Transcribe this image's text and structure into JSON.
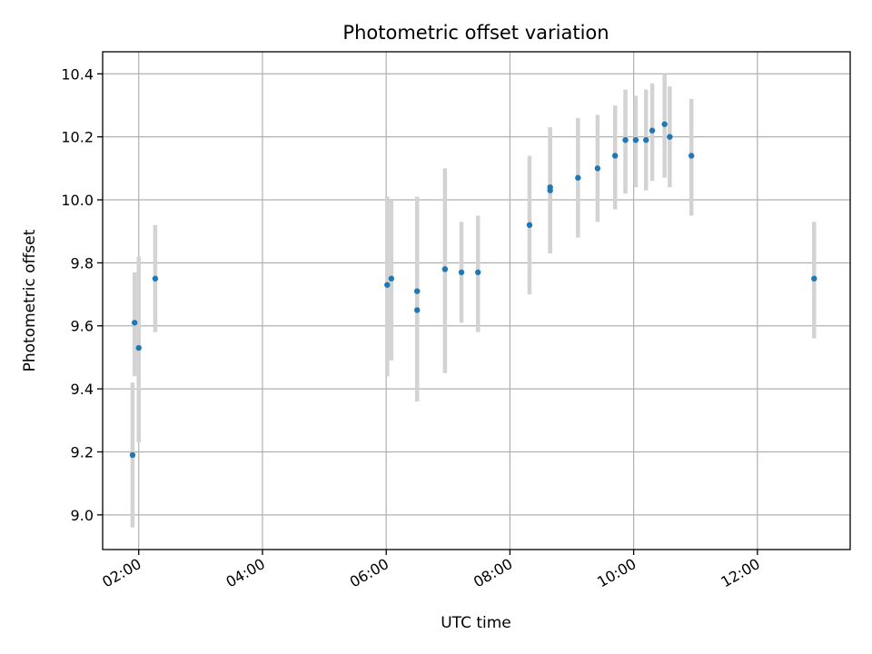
{
  "chart_data": {
    "type": "scatter",
    "title": "Photometric offset variation",
    "xlabel": "UTC time",
    "ylabel": "Photometric offset",
    "grid": true,
    "x_axis": {
      "type": "time",
      "min": "01:25",
      "max": "13:30"
    },
    "ylim": [
      8.89,
      10.47
    ],
    "x_ticks": [
      "02:00",
      "04:00",
      "06:00",
      "08:00",
      "10:00",
      "12:00"
    ],
    "y_ticks": [
      "9.0",
      "9.2",
      "9.4",
      "9.6",
      "9.8",
      "10.0",
      "10.2",
      "10.4"
    ],
    "error_bar_color": "#d3d3d3",
    "marker_color": "#1f77b4",
    "points": [
      {
        "t": "01:54",
        "y": 9.19,
        "lo": 8.96,
        "hi": 9.42
      },
      {
        "t": "01:56",
        "y": 9.61,
        "lo": 9.44,
        "hi": 9.77
      },
      {
        "t": "02:00",
        "y": 9.53,
        "lo": 9.23,
        "hi": 9.82
      },
      {
        "t": "02:16",
        "y": 9.75,
        "lo": 9.58,
        "hi": 9.92
      },
      {
        "t": "06:01",
        "y": 9.73,
        "lo": 9.44,
        "hi": 10.01
      },
      {
        "t": "06:05",
        "y": 9.75,
        "lo": 9.49,
        "hi": 10.0
      },
      {
        "t": "06:30",
        "y": 9.71,
        "lo": 9.36,
        "hi": 10.01
      },
      {
        "t": "06:30",
        "y": 9.65,
        "lo": 9.36,
        "hi": 10.01
      },
      {
        "t": "06:57",
        "y": 9.78,
        "lo": 9.45,
        "hi": 10.1
      },
      {
        "t": "07:13",
        "y": 9.77,
        "lo": 9.61,
        "hi": 9.93
      },
      {
        "t": "07:29",
        "y": 9.77,
        "lo": 9.58,
        "hi": 9.95
      },
      {
        "t": "08:19",
        "y": 9.92,
        "lo": 9.7,
        "hi": 10.14
      },
      {
        "t": "08:39",
        "y": 10.04,
        "lo": 9.83,
        "hi": 10.23
      },
      {
        "t": "08:39",
        "y": 10.03,
        "lo": 9.83,
        "hi": 10.23
      },
      {
        "t": "09:06",
        "y": 10.07,
        "lo": 9.88,
        "hi": 10.26
      },
      {
        "t": "09:25",
        "y": 10.1,
        "lo": 9.93,
        "hi": 10.27
      },
      {
        "t": "09:42",
        "y": 10.14,
        "lo": 9.97,
        "hi": 10.3
      },
      {
        "t": "09:52",
        "y": 10.19,
        "lo": 10.02,
        "hi": 10.35
      },
      {
        "t": "10:02",
        "y": 10.19,
        "lo": 10.04,
        "hi": 10.33
      },
      {
        "t": "10:12",
        "y": 10.19,
        "lo": 10.03,
        "hi": 10.35
      },
      {
        "t": "10:18",
        "y": 10.22,
        "lo": 10.06,
        "hi": 10.37
      },
      {
        "t": "10:30",
        "y": 10.24,
        "lo": 10.07,
        "hi": 10.4
      },
      {
        "t": "10:35",
        "y": 10.2,
        "lo": 10.04,
        "hi": 10.36
      },
      {
        "t": "10:56",
        "y": 10.14,
        "lo": 9.95,
        "hi": 10.32
      },
      {
        "t": "12:55",
        "y": 9.75,
        "lo": 9.56,
        "hi": 9.93
      }
    ]
  }
}
